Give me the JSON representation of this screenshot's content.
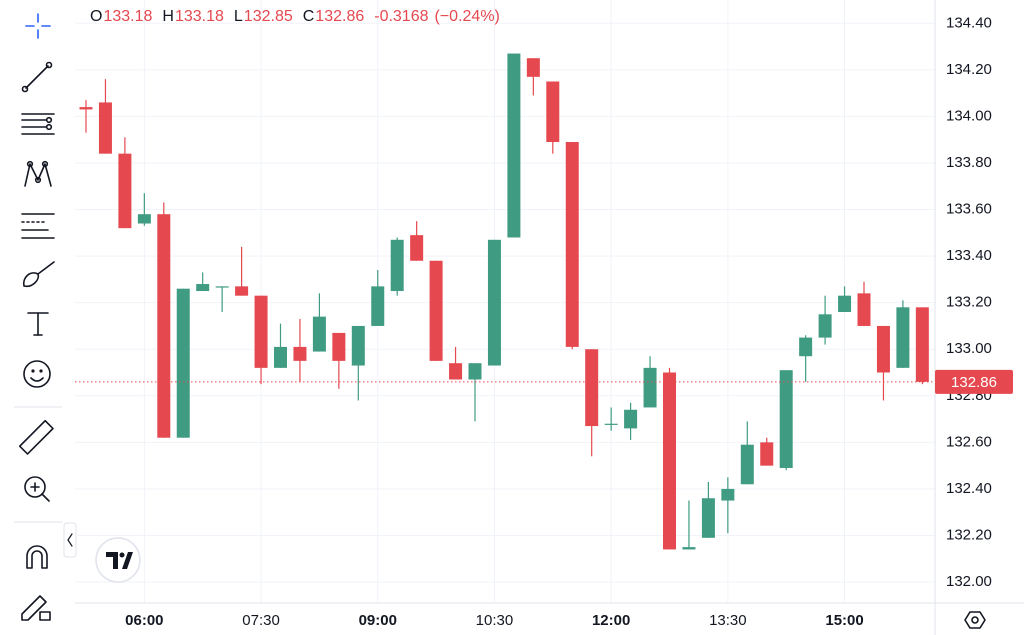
{
  "chart_data": {
    "type": "candlestick",
    "x": [
      "05:15",
      "05:30",
      "05:45",
      "06:00",
      "06:15",
      "06:30",
      "06:45",
      "07:00",
      "07:15",
      "07:30",
      "07:45",
      "08:00",
      "08:15",
      "08:30",
      "08:45",
      "09:00",
      "09:15",
      "09:30",
      "09:45",
      "10:00",
      "10:15",
      "10:30",
      "10:45",
      "11:00",
      "11:15",
      "11:30",
      "11:45",
      "12:00",
      "12:15",
      "12:30",
      "12:45",
      "13:00",
      "13:15",
      "13:30",
      "13:45",
      "14:00",
      "14:15",
      "14:30",
      "14:45",
      "15:00",
      "15:15",
      "15:30",
      "15:45",
      "16:00"
    ],
    "open": [
      134.04,
      134.06,
      133.84,
      133.54,
      133.58,
      132.62,
      133.25,
      133.27,
      133.27,
      133.23,
      132.92,
      133.01,
      132.99,
      133.07,
      132.93,
      133.1,
      133.25,
      133.49,
      133.38,
      132.94,
      132.87,
      132.93,
      133.48,
      134.25,
      134.15,
      133.89,
      133.0,
      132.68,
      132.66,
      132.75,
      132.9,
      132.14,
      132.19,
      132.35,
      132.42,
      132.6,
      132.49,
      132.97,
      133.05,
      133.16,
      133.24,
      133.1,
      132.92,
      133.18
    ],
    "high": [
      134.07,
      134.16,
      133.91,
      133.67,
      133.63,
      133.26,
      133.33,
      133.27,
      133.44,
      133.23,
      133.11,
      133.13,
      133.24,
      133.07,
      133.1,
      133.34,
      133.48,
      133.55,
      133.38,
      133.01,
      132.94,
      133.47,
      134.27,
      134.25,
      134.15,
      133.89,
      133.0,
      132.75,
      132.77,
      132.97,
      132.92,
      132.35,
      132.43,
      132.45,
      132.69,
      132.62,
      132.91,
      133.06,
      133.23,
      133.27,
      133.29,
      133.1,
      133.21,
      133.18
    ],
    "low": [
      133.93,
      133.84,
      133.52,
      133.53,
      132.62,
      132.62,
      133.25,
      133.16,
      133.23,
      132.85,
      132.92,
      132.86,
      132.99,
      132.83,
      132.78,
      133.1,
      133.23,
      133.38,
      132.95,
      132.87,
      132.69,
      132.93,
      133.48,
      134.09,
      133.84,
      133.0,
      132.54,
      132.65,
      132.61,
      132.75,
      132.14,
      132.14,
      132.19,
      132.21,
      132.42,
      132.5,
      132.48,
      132.86,
      133.02,
      133.16,
      133.1,
      132.78,
      132.92,
      132.85
    ],
    "close": [
      134.03,
      133.84,
      133.52,
      133.58,
      132.62,
      133.26,
      133.28,
      133.27,
      133.23,
      132.92,
      133.01,
      132.95,
      133.14,
      132.95,
      133.1,
      133.27,
      133.47,
      133.38,
      132.95,
      132.87,
      132.94,
      133.47,
      134.27,
      134.17,
      133.89,
      133.01,
      132.67,
      132.68,
      132.74,
      132.92,
      132.14,
      132.15,
      132.36,
      132.4,
      132.59,
      132.5,
      132.91,
      133.05,
      133.15,
      133.23,
      133.1,
      132.9,
      133.18,
      132.86
    ],
    "up_color": "#3f9b82",
    "down_color": "#e5484f",
    "ylim": [
      131.91,
      134.5
    ],
    "yticks": [
      {
        "value": 132.0,
        "label": "132.00"
      },
      {
        "value": 132.2,
        "label": "132.20"
      },
      {
        "value": 132.4,
        "label": "132.40"
      },
      {
        "value": 132.6,
        "label": "132.60"
      },
      {
        "value": 132.8,
        "label": "132.80"
      },
      {
        "value": 133.0,
        "label": "133.00"
      },
      {
        "value": 133.2,
        "label": "133.20"
      },
      {
        "value": 133.4,
        "label": "133.40"
      },
      {
        "value": 133.6,
        "label": "133.60"
      },
      {
        "value": 133.8,
        "label": "133.80"
      },
      {
        "value": 134.0,
        "label": "134.00"
      },
      {
        "value": 134.2,
        "label": "134.20"
      },
      {
        "value": 134.4,
        "label": "134.40"
      }
    ],
    "xticks": [
      "06:00",
      "07:30",
      "09:00",
      "10:30",
      "12:00",
      "13:30",
      "15:00"
    ],
    "grid": true,
    "ohlc_labels": [
      "O",
      "H",
      "L",
      "C"
    ],
    "change": "-0.3168",
    "change_percent": "(−0.24%)"
  }
}
